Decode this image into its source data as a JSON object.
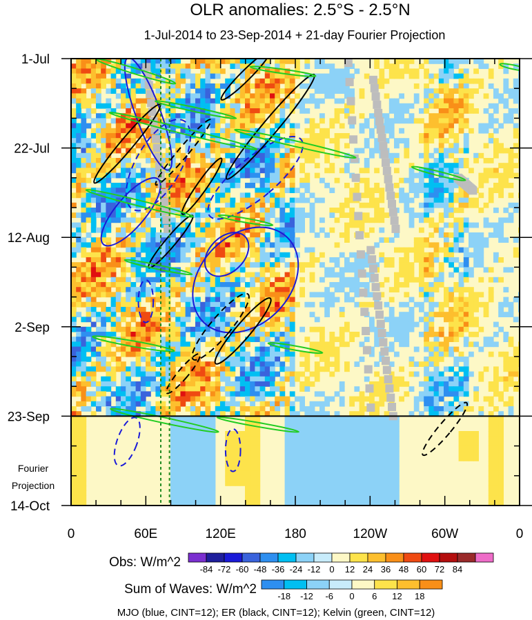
{
  "chart_data": {
    "type": "heatmap",
    "title": "OLR anomalies: 2.5°S - 2.5°N",
    "subtitle": "1-Jul-2014 to 23-Sep-2014 + 21-day Fourier Projection",
    "x_tick_labels": [
      "0",
      "60E",
      "120E",
      "180",
      "120W",
      "60W",
      "0"
    ],
    "x_tick_lon": [
      0,
      60,
      120,
      180,
      240,
      300,
      360
    ],
    "xlim": [
      0,
      360
    ],
    "y_tick_labels": [
      "1-Jul",
      "22-Jul",
      "12-Aug",
      "2-Sep",
      "23-Sep",
      "14-Oct"
    ],
    "y_tick_day": [
      0,
      21,
      42,
      63,
      84,
      105
    ],
    "ylim_days": [
      0,
      105
    ],
    "observation_end_day": 84,
    "projection_label_lines": [
      "Fourier",
      "Projection"
    ],
    "reference_longitudes": [
      72,
      79
    ],
    "obs_colorbar": {
      "title": "Obs: W/m^2",
      "labels": [
        "-84",
        "-72",
        "-60",
        "-48",
        "-36",
        "-24",
        "-12",
        "0",
        "12",
        "24",
        "36",
        "48",
        "60",
        "72",
        "84"
      ],
      "colors": [
        "#7b2fd0",
        "#1f1f9c",
        "#1a1ad8",
        "#3a63dc",
        "#2e8ff0",
        "#00bff2",
        "#8cd2f7",
        "#c8ecfb",
        "#fdf8c6",
        "#fde34b",
        "#fdbf2e",
        "#f98f18",
        "#ef4a12",
        "#e01010",
        "#b40e0e",
        "#9a2a2a",
        "#ee6cc8"
      ]
    },
    "waves_colorbar": {
      "title": "Sum of Waves: W/m^2",
      "labels": [
        "-18",
        "-12",
        "-6",
        "0",
        "6",
        "12",
        "18"
      ],
      "colors": [
        "#2e8ff0",
        "#00bff2",
        "#8cd2f7",
        "#c8ecfb",
        "#fdf8c6",
        "#fde34b",
        "#fdbf2e",
        "#f98f18"
      ]
    },
    "contour_legend": "MJO (blue, CINT=12); ER (black, CINT=12); Kelvin (green, CINT=12)",
    "series_colors": {
      "MJO": "#1a1ad8",
      "ER": "#000000",
      "Kelvin": "#22cc22",
      "missing": "#bdbdbd"
    }
  }
}
